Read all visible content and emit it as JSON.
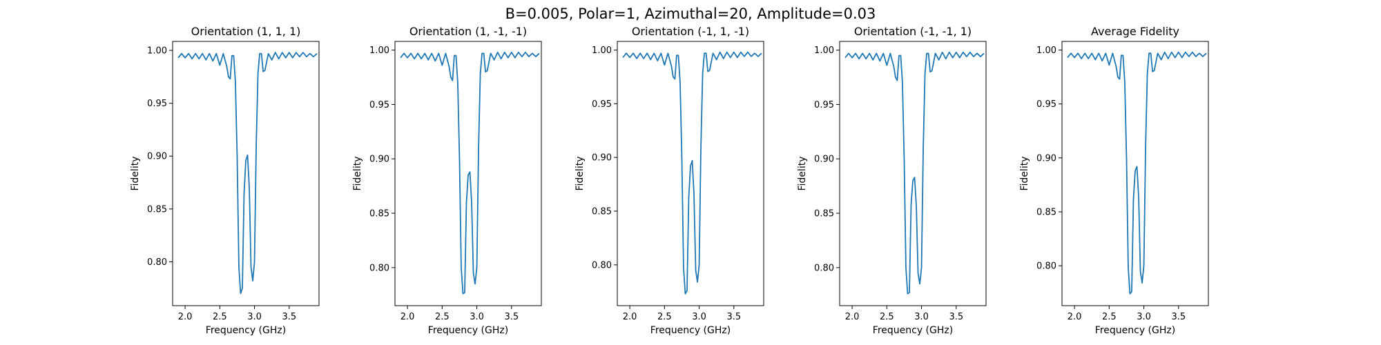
{
  "figure_title": "B=0.005, Polar=1, Azimuthal=20, Amplitude=0.03",
  "chart_data": [
    {
      "type": "line",
      "title": "Orientation (1, 1, 1)",
      "xlabel": "Frequency (GHz)",
      "ylabel": "Fidelity",
      "xlim": [
        1.82,
        3.93
      ],
      "ylim": [
        0.7585,
        1.0085
      ],
      "xticks": [
        "2.0",
        "2.5",
        "3.0",
        "3.5"
      ],
      "yticks": [
        "0.80",
        "0.85",
        "0.90",
        "0.95",
        "1.00"
      ],
      "grid": false,
      "color": "#1f77b4",
      "x": [
        1.9,
        1.95,
        2.0,
        2.05,
        2.1,
        2.15,
        2.2,
        2.25,
        2.3,
        2.35,
        2.4,
        2.45,
        2.5,
        2.55,
        2.6,
        2.625,
        2.65,
        2.675,
        2.7,
        2.725,
        2.75,
        2.775,
        2.8,
        2.825,
        2.85,
        2.875,
        2.9,
        2.925,
        2.95,
        2.975,
        3.0,
        3.025,
        3.05,
        3.075,
        3.1,
        3.125,
        3.15,
        3.2,
        3.25,
        3.3,
        3.35,
        3.4,
        3.45,
        3.5,
        3.55,
        3.6,
        3.65,
        3.7,
        3.75,
        3.8,
        3.85,
        3.9
      ],
      "y": [
        0.993,
        0.997,
        0.993,
        0.997,
        0.992,
        0.997,
        0.992,
        0.997,
        0.991,
        0.997,
        0.99,
        0.997,
        0.986,
        0.997,
        0.985,
        0.975,
        0.973,
        0.995,
        0.995,
        0.97,
        0.9,
        0.795,
        0.77,
        0.775,
        0.865,
        0.896,
        0.901,
        0.87,
        0.795,
        0.782,
        0.8,
        0.91,
        0.978,
        0.997,
        0.997,
        0.98,
        0.981,
        0.997,
        0.991,
        0.998,
        0.992,
        0.998,
        0.993,
        0.998,
        0.993,
        0.998,
        0.994,
        0.998,
        0.994,
        0.997,
        0.994,
        0.997
      ]
    },
    {
      "type": "line",
      "title": "Orientation (1, -1, -1)",
      "xlabel": "Frequency (GHz)",
      "ylabel": "Fidelity",
      "xlim": [
        1.82,
        3.93
      ],
      "ylim": [
        0.765,
        1.008
      ],
      "xticks": [
        "2.0",
        "2.5",
        "3.0",
        "3.5"
      ],
      "yticks": [
        "0.80",
        "0.85",
        "0.90",
        "0.95",
        "1.00"
      ],
      "grid": false,
      "color": "#1f77b4",
      "x": [
        1.9,
        1.95,
        2.0,
        2.05,
        2.1,
        2.15,
        2.2,
        2.25,
        2.3,
        2.35,
        2.4,
        2.45,
        2.5,
        2.55,
        2.6,
        2.625,
        2.65,
        2.675,
        2.7,
        2.725,
        2.75,
        2.775,
        2.8,
        2.825,
        2.85,
        2.875,
        2.9,
        2.925,
        2.95,
        2.975,
        3.0,
        3.025,
        3.05,
        3.075,
        3.1,
        3.125,
        3.15,
        3.2,
        3.25,
        3.3,
        3.35,
        3.4,
        3.45,
        3.5,
        3.55,
        3.6,
        3.65,
        3.7,
        3.75,
        3.8,
        3.85,
        3.9
      ],
      "y": [
        0.993,
        0.997,
        0.993,
        0.997,
        0.992,
        0.997,
        0.992,
        0.997,
        0.991,
        0.997,
        0.99,
        0.997,
        0.986,
        0.997,
        0.985,
        0.975,
        0.972,
        0.995,
        0.995,
        0.97,
        0.9,
        0.8,
        0.776,
        0.777,
        0.86,
        0.885,
        0.888,
        0.86,
        0.795,
        0.785,
        0.8,
        0.91,
        0.978,
        0.997,
        0.997,
        0.98,
        0.981,
        0.997,
        0.991,
        0.998,
        0.992,
        0.998,
        0.993,
        0.998,
        0.993,
        0.998,
        0.994,
        0.998,
        0.994,
        0.997,
        0.994,
        0.997
      ]
    },
    {
      "type": "line",
      "title": "Orientation (-1, 1, -1)",
      "xlabel": "Frequency (GHz)",
      "ylabel": "Fidelity",
      "xlim": [
        1.82,
        3.93
      ],
      "ylim": [
        0.762,
        1.008
      ],
      "xticks": [
        "2.0",
        "2.5",
        "3.0",
        "3.5"
      ],
      "yticks": [
        "0.80",
        "0.85",
        "0.90",
        "0.95",
        "1.00"
      ],
      "grid": false,
      "color": "#1f77b4",
      "x": [
        1.9,
        1.95,
        2.0,
        2.05,
        2.1,
        2.15,
        2.2,
        2.25,
        2.3,
        2.35,
        2.4,
        2.45,
        2.5,
        2.55,
        2.6,
        2.625,
        2.65,
        2.675,
        2.7,
        2.725,
        2.75,
        2.775,
        2.8,
        2.825,
        2.85,
        2.875,
        2.9,
        2.925,
        2.95,
        2.975,
        3.0,
        3.025,
        3.05,
        3.075,
        3.1,
        3.125,
        3.15,
        3.2,
        3.25,
        3.3,
        3.35,
        3.4,
        3.45,
        3.5,
        3.55,
        3.6,
        3.65,
        3.7,
        3.75,
        3.8,
        3.85,
        3.9
      ],
      "y": [
        0.993,
        0.997,
        0.993,
        0.997,
        0.992,
        0.997,
        0.992,
        0.997,
        0.991,
        0.997,
        0.99,
        0.997,
        0.986,
        0.997,
        0.985,
        0.975,
        0.973,
        0.995,
        0.995,
        0.97,
        0.9,
        0.797,
        0.773,
        0.776,
        0.863,
        0.892,
        0.897,
        0.866,
        0.795,
        0.784,
        0.8,
        0.91,
        0.978,
        0.997,
        0.997,
        0.98,
        0.981,
        0.997,
        0.991,
        0.998,
        0.992,
        0.998,
        0.993,
        0.998,
        0.993,
        0.998,
        0.994,
        0.998,
        0.994,
        0.997,
        0.994,
        0.997
      ]
    },
    {
      "type": "line",
      "title": "Orientation (-1, -1, 1)",
      "xlabel": "Frequency (GHz)",
      "ylabel": "Fidelity",
      "xlim": [
        1.82,
        3.93
      ],
      "ylim": [
        0.765,
        1.008
      ],
      "xticks": [
        "2.0",
        "2.5",
        "3.0",
        "3.5"
      ],
      "yticks": [
        "0.80",
        "0.85",
        "0.90",
        "0.95",
        "1.00"
      ],
      "grid": false,
      "color": "#1f77b4",
      "x": [
        1.9,
        1.95,
        2.0,
        2.05,
        2.1,
        2.15,
        2.2,
        2.25,
        2.3,
        2.35,
        2.4,
        2.45,
        2.5,
        2.55,
        2.6,
        2.625,
        2.65,
        2.675,
        2.7,
        2.725,
        2.75,
        2.775,
        2.8,
        2.825,
        2.85,
        2.875,
        2.9,
        2.925,
        2.95,
        2.975,
        3.0,
        3.025,
        3.05,
        3.075,
        3.1,
        3.125,
        3.15,
        3.2,
        3.25,
        3.3,
        3.35,
        3.4,
        3.45,
        3.5,
        3.55,
        3.6,
        3.65,
        3.7,
        3.75,
        3.8,
        3.85,
        3.9
      ],
      "y": [
        0.993,
        0.997,
        0.993,
        0.997,
        0.992,
        0.997,
        0.992,
        0.997,
        0.991,
        0.997,
        0.99,
        0.997,
        0.986,
        0.997,
        0.985,
        0.975,
        0.972,
        0.995,
        0.995,
        0.97,
        0.9,
        0.8,
        0.776,
        0.777,
        0.858,
        0.88,
        0.883,
        0.857,
        0.795,
        0.785,
        0.8,
        0.91,
        0.978,
        0.997,
        0.997,
        0.98,
        0.981,
        0.997,
        0.991,
        0.998,
        0.992,
        0.998,
        0.993,
        0.998,
        0.993,
        0.998,
        0.994,
        0.998,
        0.994,
        0.997,
        0.994,
        0.997
      ]
    },
    {
      "type": "line",
      "title": "Average Fidelity",
      "xlabel": "Frequency (GHz)",
      "ylabel": "Fidelity",
      "xlim": [
        1.82,
        3.93
      ],
      "ylim": [
        0.763,
        1.008
      ],
      "xticks": [
        "2.0",
        "2.5",
        "3.0",
        "3.5"
      ],
      "yticks": [
        "0.80",
        "0.85",
        "0.90",
        "0.95",
        "1.00"
      ],
      "grid": false,
      "color": "#1f77b4",
      "x": [
        1.9,
        1.95,
        2.0,
        2.05,
        2.1,
        2.15,
        2.2,
        2.25,
        2.3,
        2.35,
        2.4,
        2.45,
        2.5,
        2.55,
        2.6,
        2.625,
        2.65,
        2.675,
        2.7,
        2.725,
        2.75,
        2.775,
        2.8,
        2.825,
        2.85,
        2.875,
        2.9,
        2.925,
        2.95,
        2.975,
        3.0,
        3.025,
        3.05,
        3.075,
        3.1,
        3.125,
        3.15,
        3.2,
        3.25,
        3.3,
        3.35,
        3.4,
        3.45,
        3.5,
        3.55,
        3.6,
        3.65,
        3.7,
        3.75,
        3.8,
        3.85,
        3.9
      ],
      "y": [
        0.993,
        0.997,
        0.993,
        0.997,
        0.992,
        0.997,
        0.992,
        0.997,
        0.991,
        0.997,
        0.99,
        0.997,
        0.986,
        0.997,
        0.985,
        0.975,
        0.973,
        0.995,
        0.995,
        0.97,
        0.9,
        0.798,
        0.774,
        0.776,
        0.862,
        0.888,
        0.892,
        0.864,
        0.795,
        0.784,
        0.8,
        0.91,
        0.978,
        0.997,
        0.997,
        0.98,
        0.981,
        0.997,
        0.991,
        0.998,
        0.992,
        0.998,
        0.993,
        0.998,
        0.993,
        0.998,
        0.994,
        0.998,
        0.994,
        0.997,
        0.994,
        0.997
      ]
    }
  ]
}
